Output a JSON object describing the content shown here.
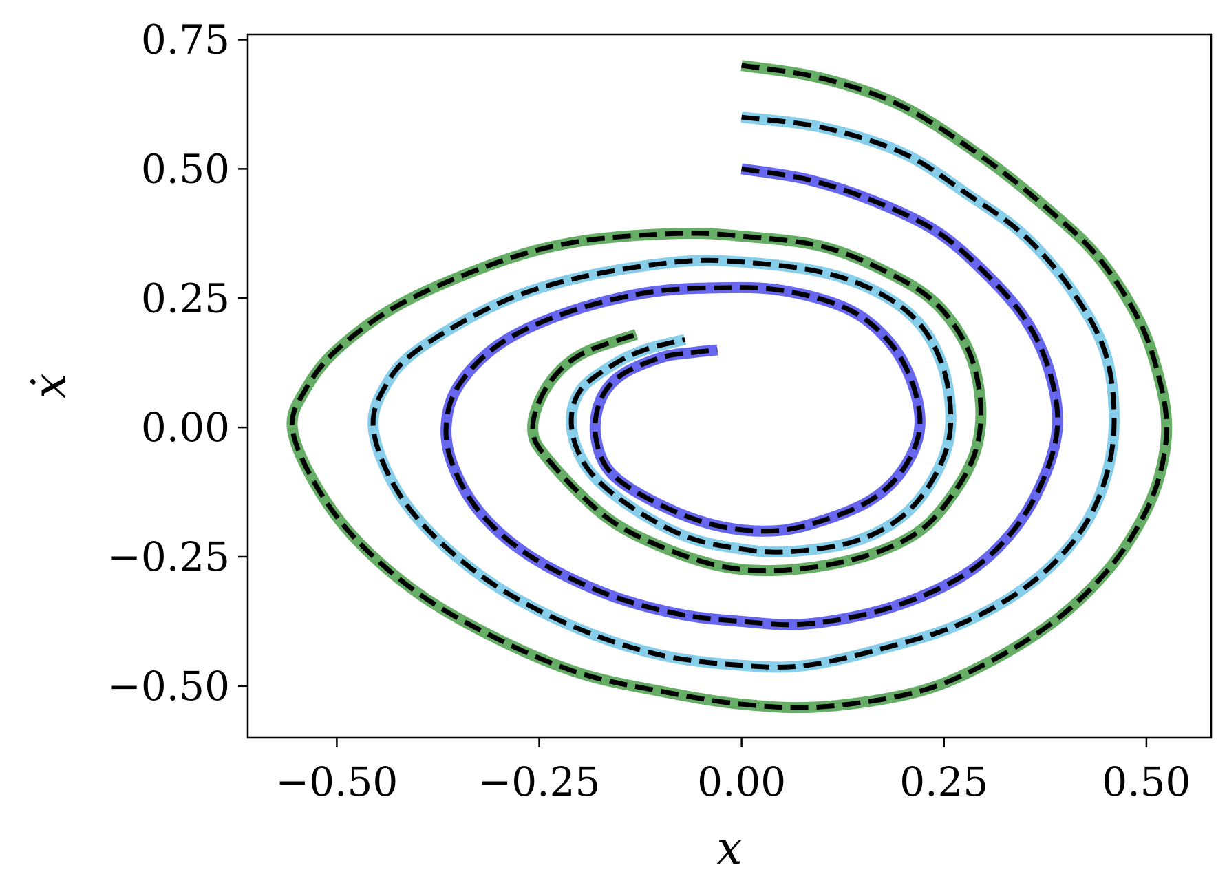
{
  "chart_data": {
    "type": "line",
    "title": "",
    "xlabel": "x",
    "ylabel": "ẋ",
    "xlim": [
      -0.61,
      0.58
    ],
    "ylim": [
      -0.6,
      0.76
    ],
    "xticks": [
      {
        "value": -0.5,
        "label": "−0.50"
      },
      {
        "value": -0.25,
        "label": "−0.25"
      },
      {
        "value": 0.0,
        "label": "0.00"
      },
      {
        "value": 0.25,
        "label": "0.25"
      },
      {
        "value": 0.5,
        "label": "0.50"
      }
    ],
    "yticks": [
      {
        "value": 0.75,
        "label": "0.75"
      },
      {
        "value": 0.5,
        "label": "0.50"
      },
      {
        "value": 0.25,
        "label": "0.25"
      },
      {
        "value": 0.0,
        "label": "0.00"
      },
      {
        "value": -0.25,
        "label": "−0.25"
      },
      {
        "value": -0.5,
        "label": "−0.50"
      }
    ],
    "grid": false,
    "legend": "none",
    "overlay_style": {
      "color": "#000000",
      "dash": "dashed"
    },
    "series": [
      {
        "color": "#66ad66",
        "points": [
          [
            0.0,
            0.7
          ],
          [
            0.1,
            0.675
          ],
          [
            0.2,
            0.62
          ],
          [
            0.3,
            0.52
          ],
          [
            0.38,
            0.42
          ],
          [
            0.44,
            0.33
          ],
          [
            0.49,
            0.21
          ],
          [
            0.515,
            0.1
          ],
          [
            0.525,
            0.0
          ],
          [
            0.515,
            -0.1
          ],
          [
            0.49,
            -0.19
          ],
          [
            0.45,
            -0.28
          ],
          [
            0.39,
            -0.37
          ],
          [
            0.31,
            -0.45
          ],
          [
            0.22,
            -0.51
          ],
          [
            0.1,
            -0.54
          ],
          [
            0.0,
            -0.535
          ],
          [
            -0.1,
            -0.51
          ],
          [
            -0.2,
            -0.475
          ],
          [
            -0.3,
            -0.41
          ],
          [
            -0.4,
            -0.32
          ],
          [
            -0.48,
            -0.21
          ],
          [
            -0.53,
            -0.1
          ],
          [
            -0.555,
            0.0
          ],
          [
            -0.54,
            0.07
          ],
          [
            -0.5,
            0.15
          ],
          [
            -0.42,
            0.24
          ],
          [
            -0.3,
            0.32
          ],
          [
            -0.2,
            0.36
          ],
          [
            -0.08,
            0.375
          ],
          [
            0.0,
            0.37
          ],
          [
            0.1,
            0.35
          ],
          [
            0.18,
            0.3
          ],
          [
            0.24,
            0.24
          ],
          [
            0.28,
            0.15
          ],
          [
            0.295,
            0.05
          ],
          [
            0.29,
            -0.04
          ],
          [
            0.265,
            -0.12
          ],
          [
            0.22,
            -0.2
          ],
          [
            0.15,
            -0.25
          ],
          [
            0.06,
            -0.275
          ],
          [
            -0.02,
            -0.27
          ],
          [
            -0.1,
            -0.23
          ],
          [
            -0.17,
            -0.17
          ],
          [
            -0.24,
            -0.06
          ],
          [
            -0.258,
            0.0
          ],
          [
            -0.24,
            0.08
          ],
          [
            -0.2,
            0.14
          ],
          [
            -0.13,
            0.18
          ]
        ]
      },
      {
        "color": "#87ceeb",
        "points": [
          [
            0.0,
            0.6
          ],
          [
            0.1,
            0.58
          ],
          [
            0.2,
            0.53
          ],
          [
            0.28,
            0.45
          ],
          [
            0.35,
            0.37
          ],
          [
            0.41,
            0.26
          ],
          [
            0.45,
            0.14
          ],
          [
            0.46,
            0.0
          ],
          [
            0.445,
            -0.12
          ],
          [
            0.41,
            -0.22
          ],
          [
            0.35,
            -0.31
          ],
          [
            0.27,
            -0.38
          ],
          [
            0.18,
            -0.425
          ],
          [
            0.08,
            -0.46
          ],
          [
            0.0,
            -0.46
          ],
          [
            -0.1,
            -0.44
          ],
          [
            -0.2,
            -0.39
          ],
          [
            -0.3,
            -0.31
          ],
          [
            -0.38,
            -0.21
          ],
          [
            -0.43,
            -0.11
          ],
          [
            -0.455,
            0.0
          ],
          [
            -0.44,
            0.08
          ],
          [
            -0.4,
            0.15
          ],
          [
            -0.3,
            0.24
          ],
          [
            -0.2,
            0.29
          ],
          [
            -0.08,
            0.32
          ],
          [
            0.0,
            0.32
          ],
          [
            0.1,
            0.3
          ],
          [
            0.17,
            0.26
          ],
          [
            0.22,
            0.2
          ],
          [
            0.25,
            0.11
          ],
          [
            0.258,
            0.0
          ],
          [
            0.24,
            -0.09
          ],
          [
            0.2,
            -0.17
          ],
          [
            0.14,
            -0.22
          ],
          [
            0.06,
            -0.24
          ],
          [
            0.0,
            -0.235
          ],
          [
            -0.07,
            -0.21
          ],
          [
            -0.14,
            -0.15
          ],
          [
            -0.19,
            -0.08
          ],
          [
            -0.21,
            0.0
          ],
          [
            -0.2,
            0.07
          ],
          [
            -0.16,
            0.12
          ],
          [
            -0.12,
            0.15
          ],
          [
            -0.07,
            0.17
          ]
        ]
      },
      {
        "color": "#6666ee",
        "points": [
          [
            0.0,
            0.5
          ],
          [
            0.08,
            0.48
          ],
          [
            0.16,
            0.44
          ],
          [
            0.24,
            0.38
          ],
          [
            0.3,
            0.3
          ],
          [
            0.35,
            0.21
          ],
          [
            0.38,
            0.11
          ],
          [
            0.39,
            0.0
          ],
          [
            0.37,
            -0.11
          ],
          [
            0.33,
            -0.21
          ],
          [
            0.27,
            -0.29
          ],
          [
            0.18,
            -0.35
          ],
          [
            0.08,
            -0.38
          ],
          [
            0.0,
            -0.375
          ],
          [
            -0.08,
            -0.36
          ],
          [
            -0.17,
            -0.32
          ],
          [
            -0.26,
            -0.25
          ],
          [
            -0.32,
            -0.17
          ],
          [
            -0.355,
            -0.08
          ],
          [
            -0.365,
            0.0
          ],
          [
            -0.35,
            0.08
          ],
          [
            -0.3,
            0.16
          ],
          [
            -0.22,
            0.22
          ],
          [
            -0.12,
            0.26
          ],
          [
            -0.03,
            0.27
          ],
          [
            0.05,
            0.265
          ],
          [
            0.13,
            0.23
          ],
          [
            0.18,
            0.17
          ],
          [
            0.21,
            0.09
          ],
          [
            0.22,
            0.0
          ],
          [
            0.2,
            -0.08
          ],
          [
            0.16,
            -0.14
          ],
          [
            0.1,
            -0.18
          ],
          [
            0.04,
            -0.2
          ],
          [
            -0.03,
            -0.19
          ],
          [
            -0.1,
            -0.15
          ],
          [
            -0.16,
            -0.09
          ],
          [
            -0.18,
            -0.02
          ],
          [
            -0.175,
            0.05
          ],
          [
            -0.15,
            0.1
          ],
          [
            -0.1,
            0.135
          ],
          [
            -0.06,
            0.145
          ],
          [
            -0.03,
            0.15
          ]
        ]
      }
    ]
  }
}
